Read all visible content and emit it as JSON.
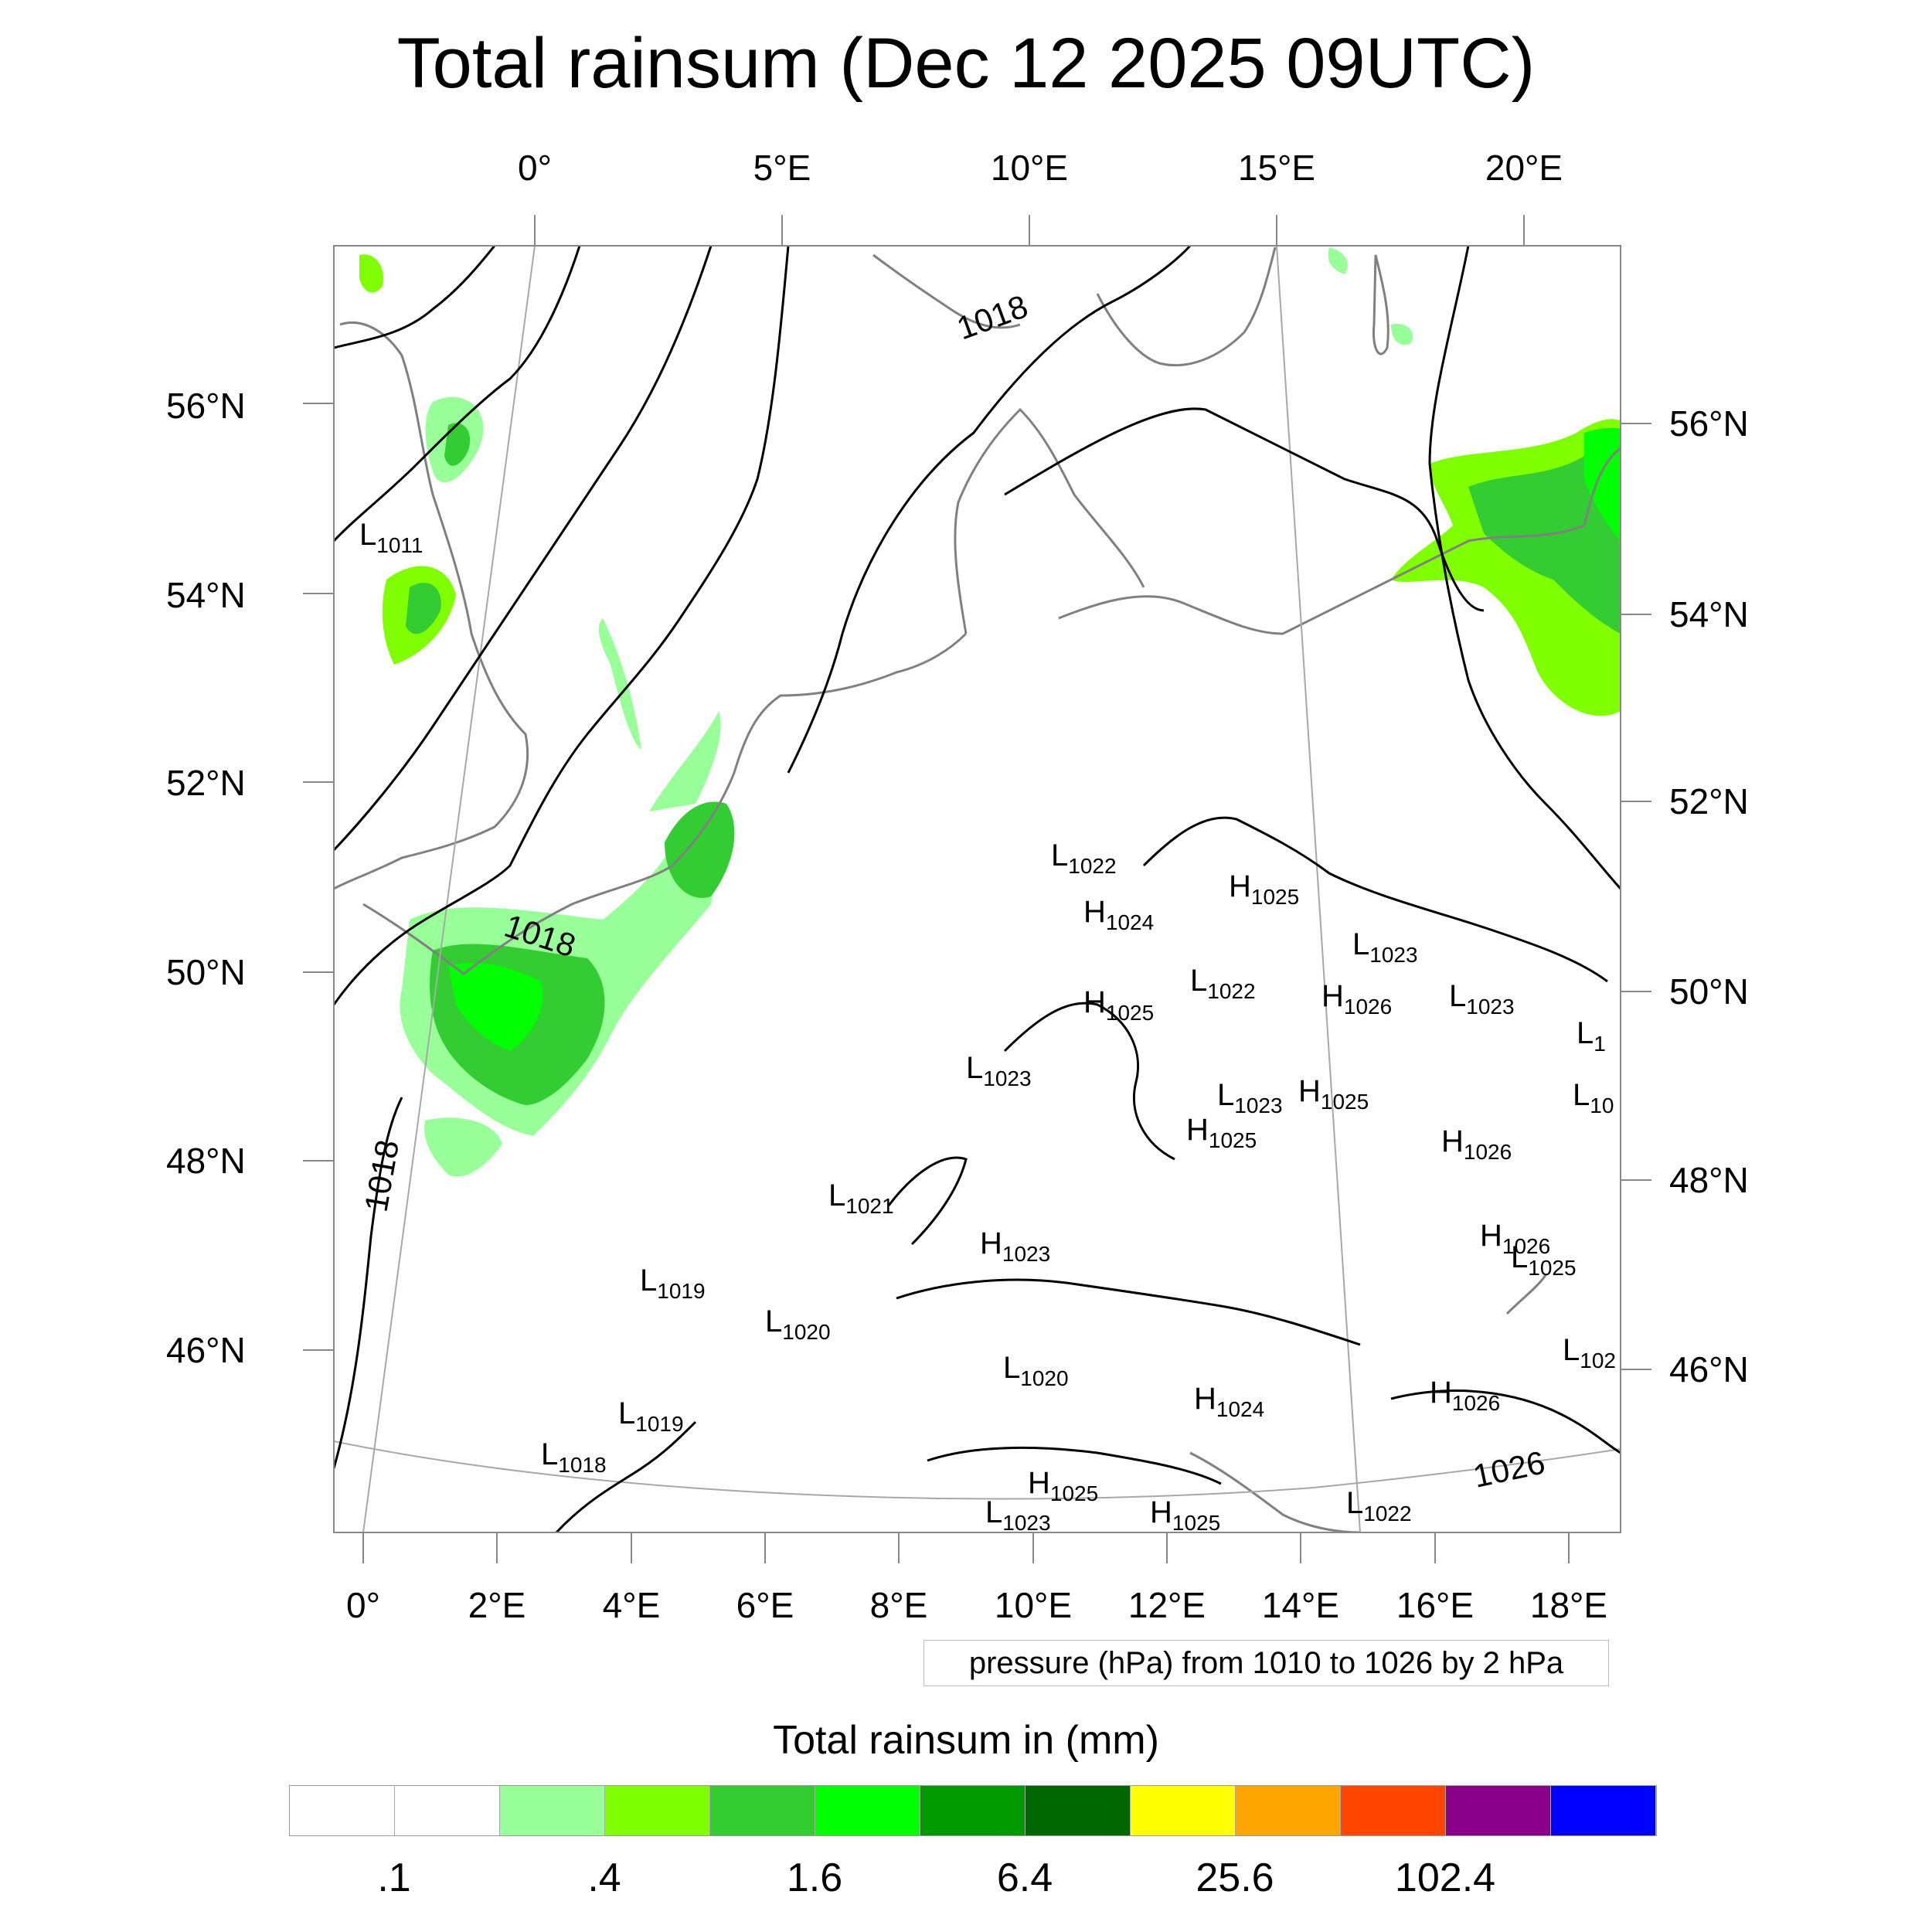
{
  "title": "Total rainsum (Dec 12 2025 09UTC)",
  "top_ticks": [
    "0°",
    "5°E",
    "10°E",
    "15°E",
    "20°E"
  ],
  "bottom_ticks": [
    "0°",
    "2°E",
    "4°E",
    "6°E",
    "8°E",
    "10°E",
    "12°E",
    "14°E",
    "16°E",
    "18°E"
  ],
  "left_ticks": [
    "56°N",
    "54°N",
    "52°N",
    "50°N",
    "48°N",
    "46°N"
  ],
  "right_ticks": [
    "56°N",
    "54°N",
    "52°N",
    "50°N",
    "48°N",
    "46°N"
  ],
  "pressure_note": "pressure (hPa) from 1010 to 1026 by 2 hPa",
  "legend": {
    "title": "Total rainsum in (mm)",
    "colors": [
      "#ffffff",
      "#ffffff",
      "#99ff99",
      "#80ff00",
      "#33cc33",
      "#00ff00",
      "#009900",
      "#006600",
      "#ffff00",
      "#ffa500",
      "#ff4500",
      "#8b008b",
      "#0000ff"
    ],
    "labels": [
      ".1",
      ".4",
      "1.6",
      "6.4",
      "25.6",
      "102.4"
    ]
  },
  "isobar_labels": [
    "1018",
    "1018",
    "1018",
    "1026"
  ],
  "pressure_centers": [
    {
      "t": "L",
      "v": "1011"
    },
    {
      "t": "L",
      "v": "1022"
    },
    {
      "t": "H",
      "v": "1024"
    },
    {
      "t": "H",
      "v": "1025"
    },
    {
      "t": "L",
      "v": "1023"
    },
    {
      "t": "L",
      "v": "1022"
    },
    {
      "t": "H",
      "v": "1026"
    },
    {
      "t": "L",
      "v": "1023"
    },
    {
      "t": "H",
      "v": "1025"
    },
    {
      "t": "L",
      "v": "1023"
    },
    {
      "t": "L",
      "v": "1023"
    },
    {
      "t": "H",
      "v": "1025"
    },
    {
      "t": "H",
      "v": "1025"
    },
    {
      "t": "H",
      "v": "1026"
    },
    {
      "t": "L",
      "v": "1021"
    },
    {
      "t": "H",
      "v": "1023"
    },
    {
      "t": "H",
      "v": "1026"
    },
    {
      "t": "L",
      "v": "1025"
    },
    {
      "t": "L",
      "v": "1019"
    },
    {
      "t": "L",
      "v": "1020"
    },
    {
      "t": "L",
      "v": "1020"
    },
    {
      "t": "H",
      "v": "1024"
    },
    {
      "t": "H",
      "v": "1026"
    },
    {
      "t": "L",
      "v": "1019"
    },
    {
      "t": "L",
      "v": "1018"
    },
    {
      "t": "H",
      "v": "1025"
    },
    {
      "t": "L",
      "v": "1023"
    },
    {
      "t": "H",
      "v": "1025"
    },
    {
      "t": "L",
      "v": "1022"
    },
    {
      "t": "L",
      "v": "1"
    },
    {
      "t": "L",
      "v": "10"
    },
    {
      "t": "L",
      "v": "102"
    }
  ]
}
